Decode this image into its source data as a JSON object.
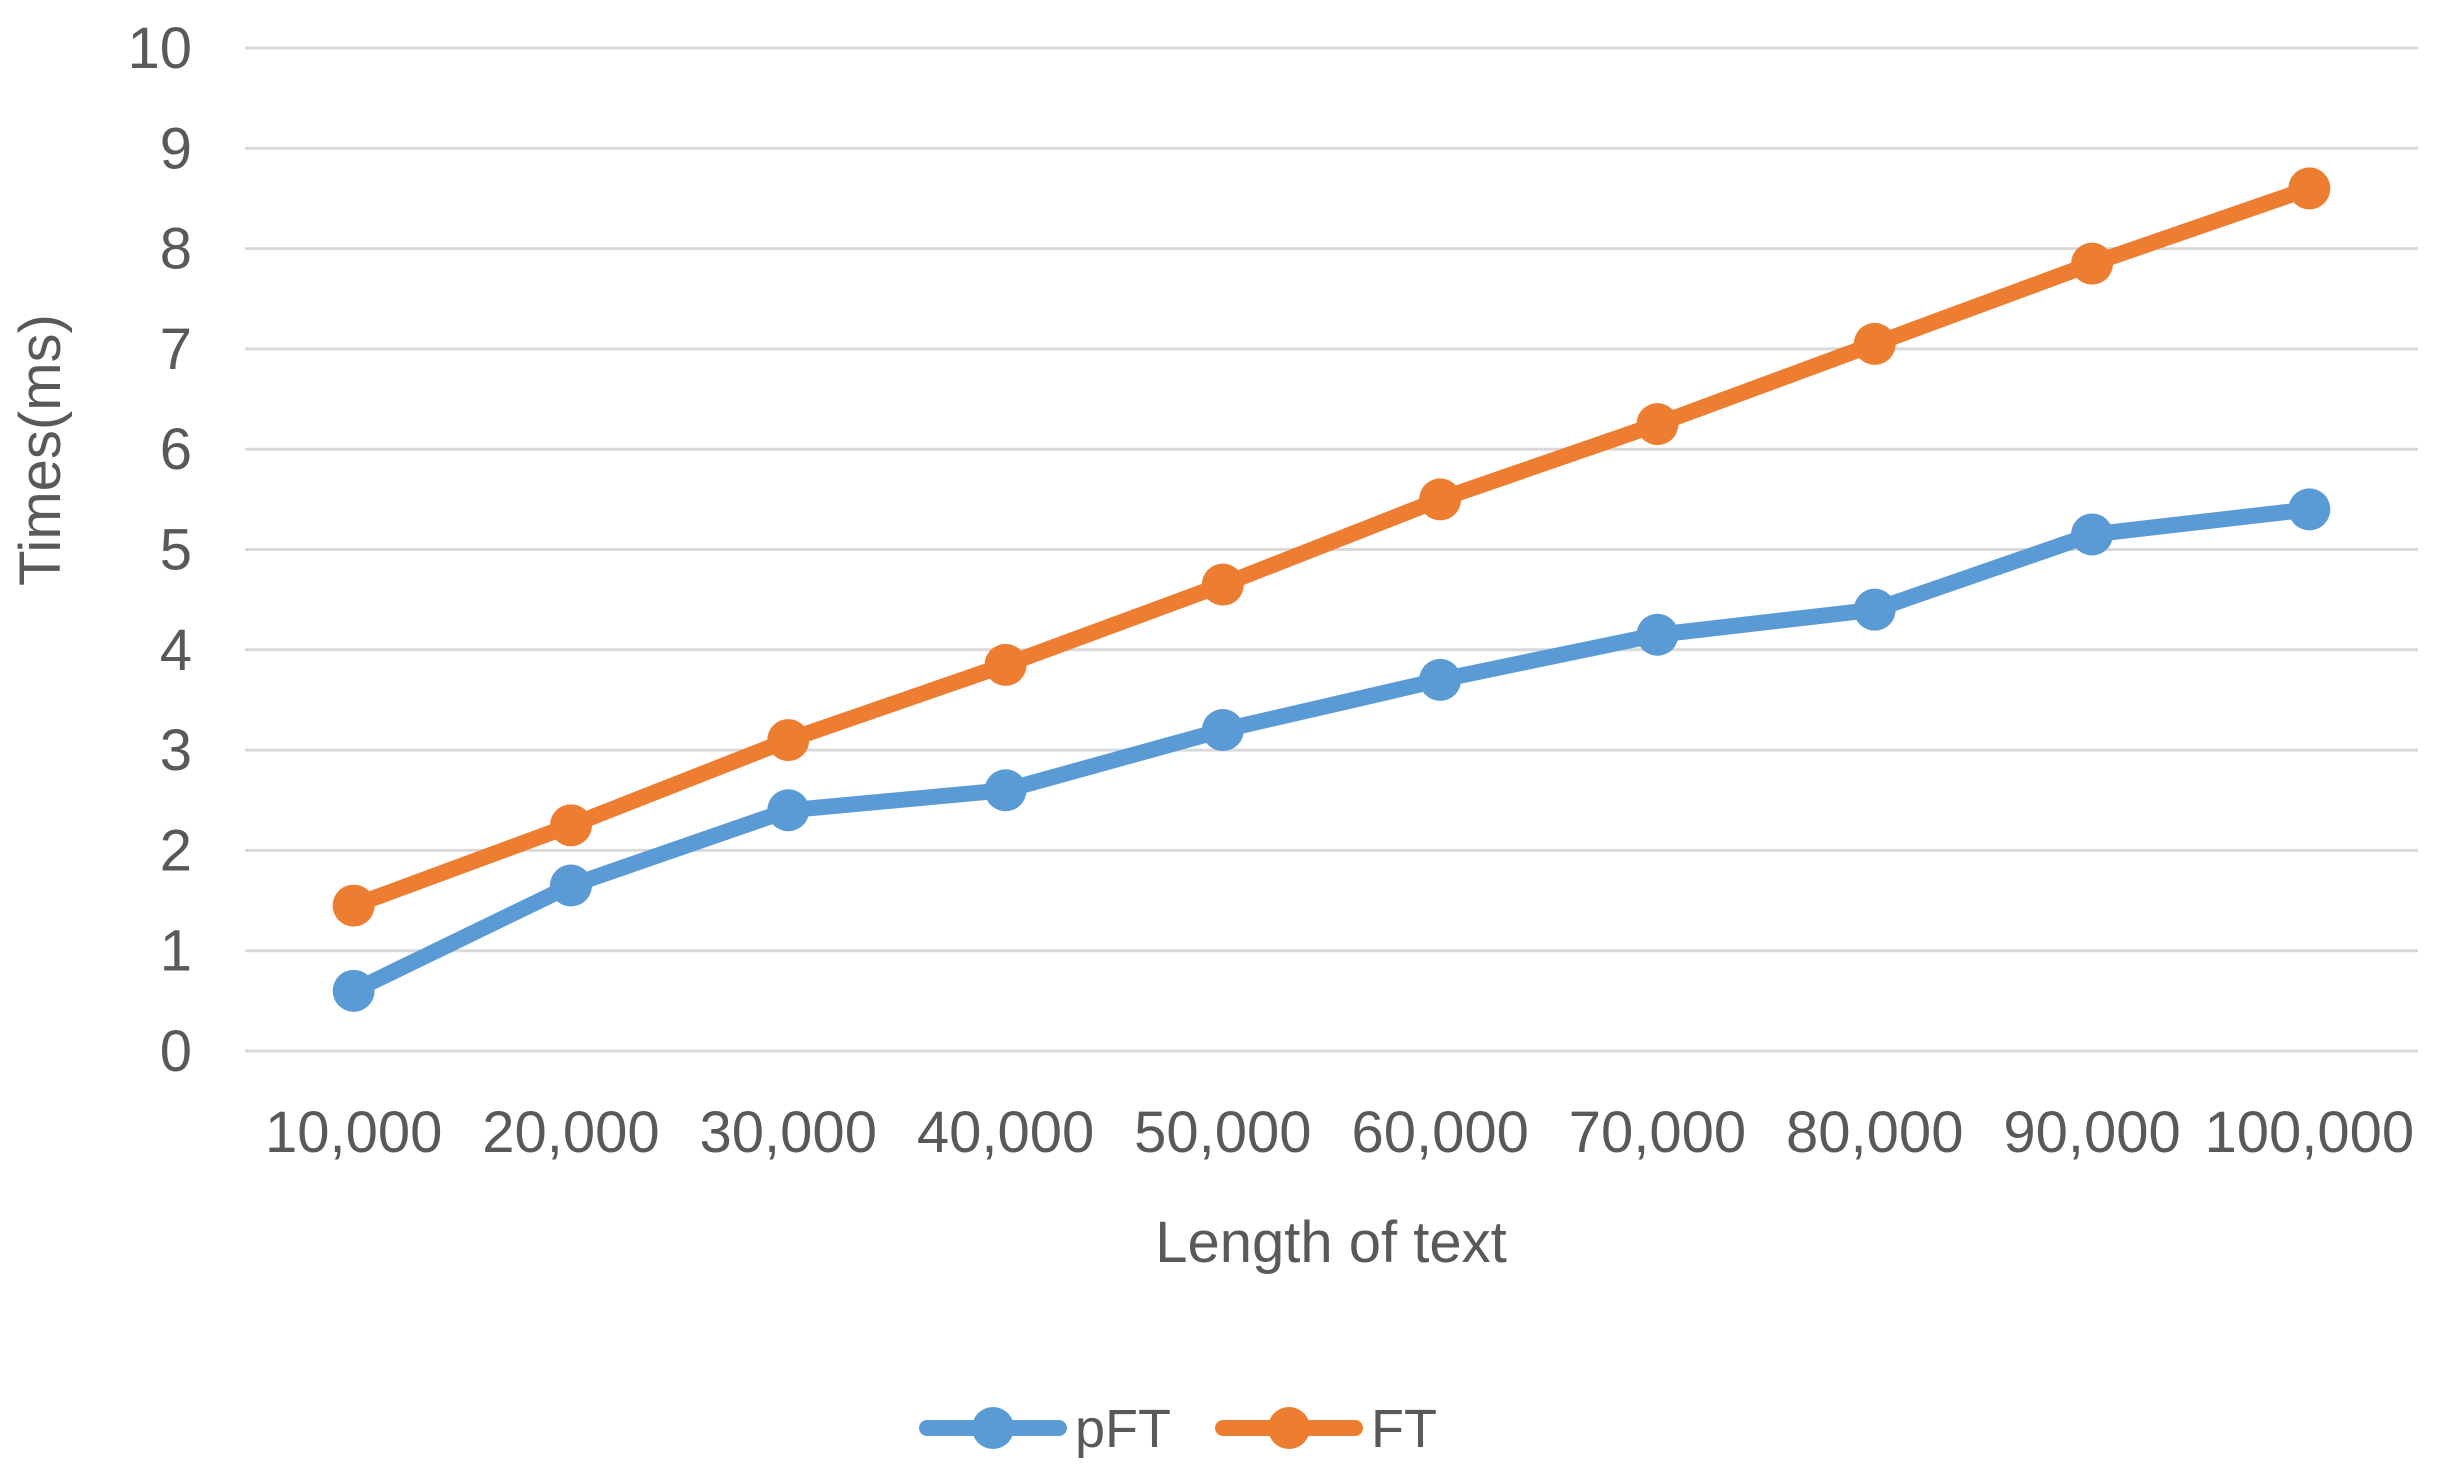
{
  "chart_data": {
    "type": "line",
    "title": "",
    "xlabel": "Length of text",
    "ylabel": "Times(ms)",
    "categories": [
      "10,000",
      "20,000",
      "30,000",
      "40,000",
      "50,000",
      "60,000",
      "70,000",
      "80,000",
      "90,000",
      "100,000"
    ],
    "series": [
      {
        "name": "pFT",
        "color": "#5B9BD5",
        "marker": "circle",
        "values": [
          0.6,
          1.65,
          2.4,
          2.6,
          3.2,
          3.7,
          4.15,
          4.4,
          5.15,
          5.4
        ]
      },
      {
        "name": "FT",
        "color": "#ED7D31",
        "marker": "circle",
        "values": [
          1.45,
          2.25,
          3.1,
          3.85,
          4.65,
          5.5,
          6.25,
          7.05,
          7.85,
          8.6
        ]
      }
    ],
    "ylim": [
      0,
      10
    ],
    "y_ticks": [
      0,
      1,
      2,
      3,
      4,
      5,
      6,
      7,
      8,
      9,
      10
    ],
    "grid": "horizontal",
    "gridline_color": "#D9D9D9",
    "text_color": "#595959",
    "background_color": "#FFFFFF",
    "legend_position": "bottom",
    "legend_entries": [
      "pFT",
      "FT"
    ]
  }
}
